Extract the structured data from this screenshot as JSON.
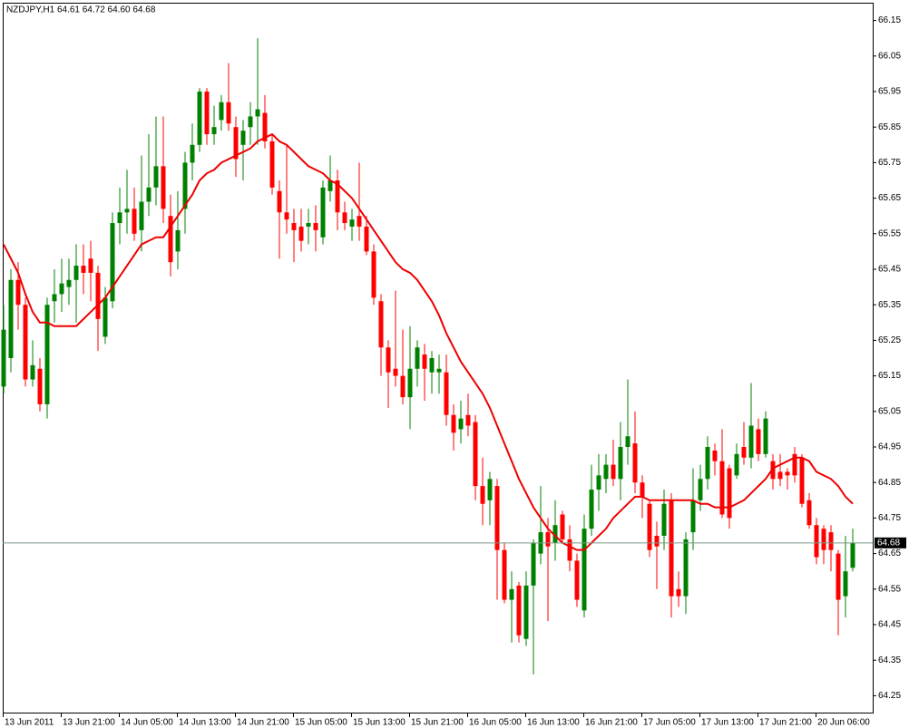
{
  "chart_data": {
    "type": "candlestick",
    "title": "NZDJPY,H1  64.61 64.72 64.60 64.68",
    "categories": [
      "13 Jun 2011",
      null,
      null,
      null,
      null,
      null,
      null,
      null,
      "13 Jun 21:00",
      null,
      null,
      null,
      null,
      null,
      null,
      null,
      "14 Jun 05:00",
      null,
      null,
      null,
      null,
      null,
      null,
      null,
      "14 Jun 13:00",
      null,
      null,
      null,
      null,
      null,
      null,
      null,
      "14 Jun 21:00",
      null,
      null,
      null,
      null,
      null,
      null,
      null,
      "15 Jun 05:00",
      null,
      null,
      null,
      null,
      null,
      null,
      null,
      "15 Jun 13:00",
      null,
      null,
      null,
      null,
      null,
      null,
      null,
      "15 Jun 21:00",
      null,
      null,
      null,
      null,
      null,
      null,
      null,
      "16 Jun 05:00",
      null,
      null,
      null,
      null,
      null,
      null,
      null,
      "16 Jun 13:00",
      null,
      null,
      null,
      null,
      null,
      null,
      null,
      "16 Jun 21:00",
      null,
      null,
      null,
      null,
      null,
      null,
      null,
      "17 Jun 05:00",
      null,
      null,
      null,
      null,
      null,
      null,
      null,
      "17 Jun 13:00",
      null,
      null,
      null,
      null,
      null,
      null,
      null,
      "17 Jun 21:00",
      null,
      null,
      null,
      null,
      null,
      null,
      null,
      "20 Jun 06:00",
      null,
      null,
      null,
      null,
      null
    ],
    "open": [
      65.12,
      65.2,
      65.42,
      65.35,
      65.14,
      65.17,
      65.07,
      65.36,
      65.38,
      65.4,
      65.42,
      65.46,
      65.48,
      65.44,
      65.26,
      65.36,
      65.58,
      65.61,
      65.62,
      65.56,
      65.64,
      65.68,
      65.74,
      65.6,
      65.5,
      65.62,
      65.75,
      65.8,
      65.95,
      65.83,
      65.87,
      65.92,
      65.85,
      65.8,
      65.85,
      65.88,
      65.89,
      65.81,
      65.67,
      65.61,
      65.58,
      65.57,
      65.57,
      65.58,
      65.54,
      65.67,
      65.7,
      65.61,
      65.57,
      65.6,
      65.57,
      65.5,
      65.36,
      65.23,
      65.17,
      65.15,
      65.09,
      65.17,
      65.21,
      65.16,
      65.16,
      65.16,
      65.04,
      65.0,
      65.04,
      65.02,
      64.84,
      64.8,
      64.84,
      64.66,
      64.52,
      64.56,
      64.41,
      64.56,
      64.65,
      64.71,
      64.68,
      64.76,
      64.69,
      64.63,
      64.49,
      64.72,
      64.83,
      64.86,
      64.9,
      64.86,
      64.95,
      64.96,
      64.85,
      64.79,
      64.7,
      64.7,
      64.8,
      64.55,
      64.53,
      64.71,
      64.8,
      64.86,
      64.94,
      64.91,
      64.89,
      64.87,
      64.95,
      64.92,
      65.0,
      64.93,
      64.91,
      64.88,
      64.88,
      64.93,
      64.92,
      64.8,
      64.73,
      64.72,
      64.71,
      64.65,
      64.53,
      64.61
    ],
    "high": [
      65.35,
      65.45,
      65.47,
      65.37,
      65.25,
      65.2,
      65.37,
      65.45,
      65.48,
      65.48,
      65.52,
      65.52,
      65.53,
      65.46,
      65.4,
      65.61,
      65.68,
      65.73,
      65.68,
      65.77,
      65.83,
      65.88,
      65.88,
      65.66,
      65.67,
      65.78,
      65.86,
      65.96,
      65.96,
      65.91,
      65.94,
      66.03,
      65.88,
      65.87,
      65.92,
      66.1,
      65.94,
      65.83,
      65.7,
      65.8,
      65.62,
      65.62,
      65.62,
      65.63,
      65.7,
      65.77,
      65.73,
      65.64,
      65.62,
      65.75,
      65.6,
      65.52,
      65.38,
      65.25,
      65.39,
      65.28,
      65.29,
      65.25,
      65.24,
      65.22,
      65.21,
      65.21,
      65.07,
      65.08,
      65.1,
      65.04,
      64.92,
      64.88,
      64.86,
      64.68,
      64.6,
      64.57,
      64.6,
      64.69,
      64.84,
      64.75,
      64.8,
      64.77,
      64.73,
      64.65,
      64.76,
      64.9,
      64.93,
      64.93,
      64.97,
      65.02,
      65.14,
      65.05,
      64.87,
      64.8,
      64.74,
      64.83,
      64.82,
      64.6,
      64.71,
      64.89,
      64.9,
      64.98,
      64.96,
      65.0,
      64.9,
      64.96,
      65.02,
      65.13,
      65.03,
      65.05,
      64.93,
      64.93,
      64.89,
      64.95,
      64.93,
      64.82,
      64.75,
      64.73,
      64.73,
      64.66,
      64.7,
      64.72
    ],
    "low": [
      65.1,
      65.16,
      65.28,
      65.12,
      65.12,
      65.05,
      65.03,
      65.3,
      65.33,
      65.35,
      65.3,
      65.38,
      65.36,
      65.22,
      65.24,
      65.34,
      65.52,
      65.55,
      65.53,
      65.5,
      65.6,
      65.63,
      65.58,
      65.43,
      65.45,
      65.55,
      65.7,
      65.78,
      65.8,
      65.8,
      65.84,
      65.84,
      65.71,
      65.7,
      65.8,
      65.8,
      65.79,
      65.66,
      65.48,
      65.55,
      65.47,
      65.5,
      65.52,
      65.5,
      65.52,
      65.64,
      65.56,
      65.56,
      65.53,
      65.53,
      65.49,
      65.35,
      65.15,
      65.06,
      65.12,
      65.07,
      65.0,
      65.12,
      65.08,
      65.1,
      65.1,
      65.01,
      64.94,
      64.96,
      64.98,
      64.8,
      64.73,
      64.73,
      64.52,
      64.51,
      64.4,
      64.4,
      64.39,
      64.31,
      64.62,
      64.46,
      64.63,
      64.68,
      64.6,
      64.5,
      64.47,
      64.7,
      64.77,
      64.82,
      64.84,
      64.8,
      64.9,
      64.82,
      64.75,
      64.64,
      64.55,
      64.66,
      64.47,
      64.5,
      64.48,
      64.66,
      64.77,
      64.83,
      64.87,
      64.75,
      64.72,
      64.86,
      64.9,
      64.89,
      64.91,
      64.92,
      64.83,
      64.84,
      64.83,
      64.85,
      64.78,
      64.72,
      64.62,
      64.62,
      64.6,
      64.42,
      64.47,
      64.6
    ],
    "close": [
      65.28,
      65.42,
      65.35,
      65.14,
      65.18,
      65.07,
      65.35,
      65.38,
      65.41,
      65.42,
      65.46,
      65.44,
      65.44,
      65.31,
      65.37,
      65.58,
      65.61,
      65.62,
      65.55,
      65.64,
      65.68,
      65.74,
      65.62,
      65.47,
      65.56,
      65.75,
      65.8,
      65.95,
      65.83,
      65.85,
      65.92,
      65.86,
      65.76,
      65.84,
      65.88,
      65.9,
      65.81,
      65.68,
      65.61,
      65.59,
      65.56,
      65.53,
      65.58,
      65.56,
      65.68,
      65.7,
      65.61,
      65.58,
      65.59,
      65.57,
      65.5,
      65.37,
      65.23,
      65.16,
      65.15,
      65.09,
      65.17,
      65.23,
      65.17,
      65.2,
      65.17,
      65.04,
      64.99,
      65.03,
      65.01,
      64.84,
      64.79,
      64.86,
      64.66,
      64.52,
      64.55,
      64.42,
      64.56,
      64.68,
      64.71,
      64.67,
      64.73,
      64.69,
      64.63,
      64.52,
      64.72,
      64.83,
      64.87,
      64.9,
      64.86,
      64.95,
      64.98,
      64.85,
      64.81,
      64.66,
      64.67,
      64.79,
      64.53,
      64.53,
      64.69,
      64.8,
      64.86,
      64.95,
      64.91,
      64.76,
      64.75,
      64.93,
      64.92,
      65.01,
      64.93,
      65.03,
      64.86,
      64.86,
      64.87,
      64.87,
      64.79,
      64.73,
      64.64,
      64.66,
      64.66,
      64.52,
      64.6,
      64.68
    ],
    "ma": [
      65.52,
      65.48,
      65.44,
      65.38,
      65.33,
      65.3,
      65.3,
      65.29,
      65.29,
      65.29,
      65.29,
      65.31,
      65.33,
      65.35,
      65.37,
      65.4,
      65.43,
      65.46,
      65.49,
      65.52,
      65.53,
      65.54,
      65.54,
      65.57,
      65.6,
      65.63,
      65.66,
      65.7,
      65.72,
      65.73,
      65.75,
      65.76,
      65.77,
      65.78,
      65.79,
      65.81,
      65.82,
      65.83,
      65.81,
      65.8,
      65.78,
      65.76,
      65.74,
      65.73,
      65.72,
      65.7,
      65.69,
      65.67,
      65.65,
      65.62,
      65.59,
      65.56,
      65.53,
      65.5,
      65.47,
      65.45,
      65.44,
      65.42,
      65.39,
      65.36,
      65.32,
      65.27,
      65.23,
      65.19,
      65.16,
      65.13,
      65.1,
      65.06,
      65.01,
      64.96,
      64.91,
      64.86,
      64.82,
      64.78,
      64.75,
      64.72,
      64.7,
      64.68,
      64.67,
      64.66,
      64.66,
      64.68,
      64.7,
      64.72,
      64.75,
      64.77,
      64.79,
      64.81,
      64.81,
      64.8,
      64.8,
      64.8,
      64.8,
      64.8,
      64.8,
      64.8,
      64.79,
      64.79,
      64.78,
      64.78,
      64.78,
      64.79,
      64.8,
      64.82,
      64.84,
      64.86,
      64.89,
      64.9,
      64.91,
      64.92,
      64.92,
      64.91,
      64.88,
      64.87,
      64.86,
      64.84,
      64.81,
      64.79
    ],
    "price_line": 64.68,
    "ylim": [
      64.2,
      66.2
    ],
    "yticks": [
      66.15,
      66.05,
      65.95,
      65.85,
      65.75,
      65.65,
      65.55,
      65.45,
      65.35,
      65.25,
      65.15,
      65.05,
      64.95,
      64.85,
      64.75,
      64.65,
      64.55,
      64.45,
      64.35,
      64.25
    ],
    "up_color": "#008000",
    "down_color": "#ff0000",
    "ma_color": "#ee0000",
    "price_line_color": "#7a9a88"
  }
}
